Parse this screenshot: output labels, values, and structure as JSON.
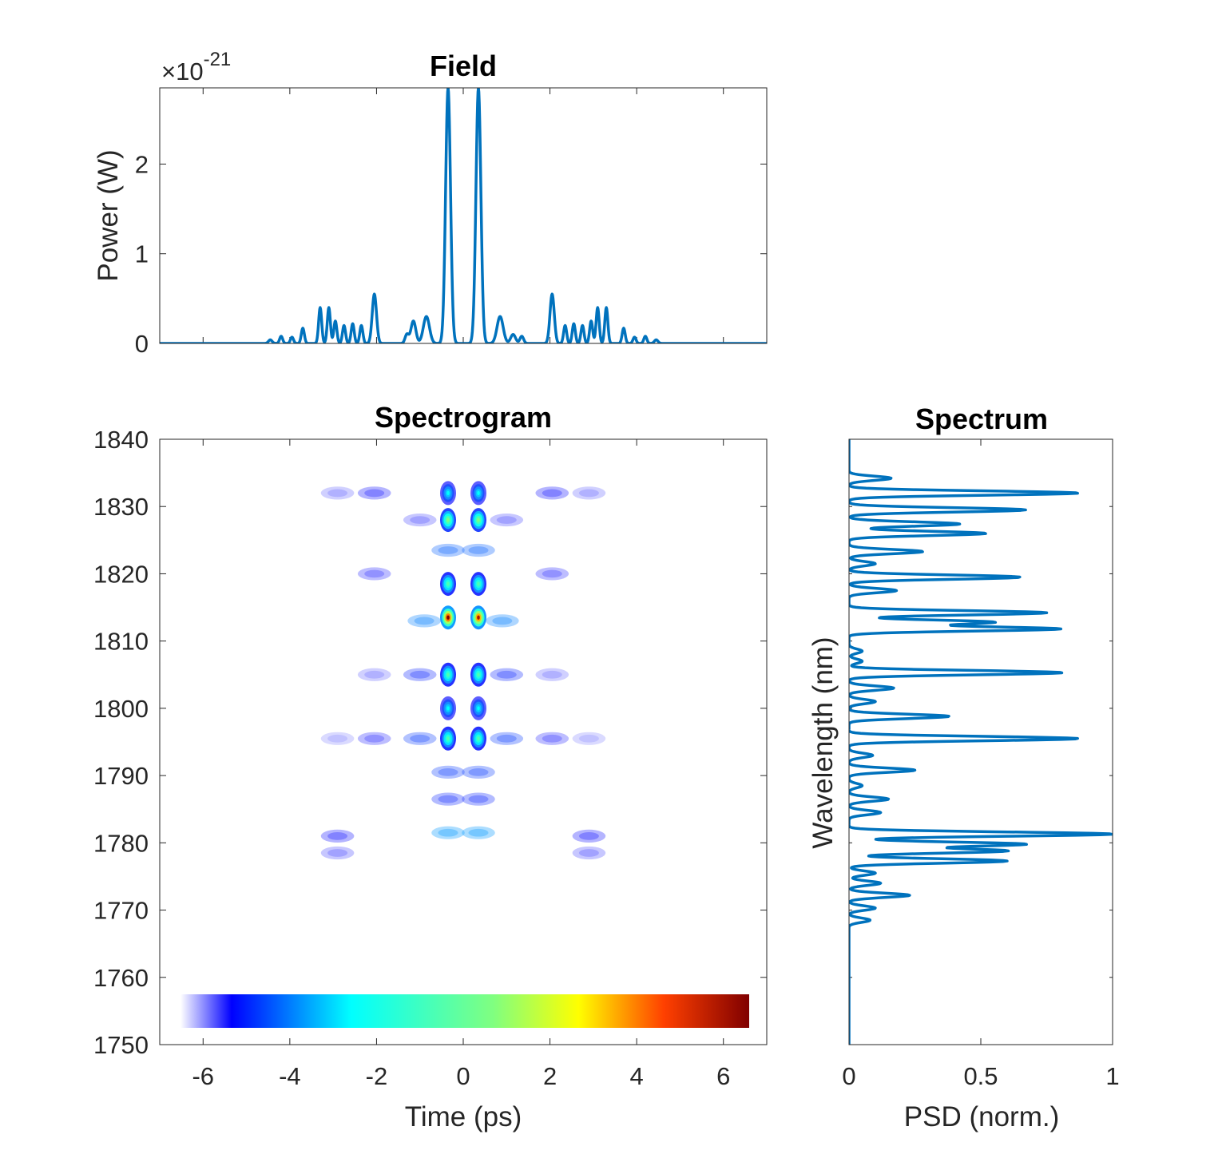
{
  "colors": {
    "line": "#0072BD",
    "axis": "#262626"
  },
  "chart_data": [
    {
      "id": "field",
      "type": "line",
      "title": "Field",
      "xlabel": "",
      "ylabel": "Power (W)",
      "exponent_label": "×10",
      "exponent_power": "-21",
      "xlim": [
        -7,
        7
      ],
      "ylim": [
        0,
        2.85
      ],
      "yticks": [
        0,
        1,
        2
      ],
      "ytick_labels": [
        "0",
        "1",
        "2"
      ],
      "xticks": [
        -6,
        -4,
        -2,
        0,
        2,
        4,
        6
      ],
      "y_scale_factor": "1e-21",
      "peaks": [
        {
          "x": -0.35,
          "y": 2.85,
          "w": 0.08
        },
        {
          "x": 0.35,
          "y": 2.85,
          "w": 0.08
        },
        {
          "x": -0.85,
          "y": 0.3,
          "w": 0.1
        },
        {
          "x": 0.85,
          "y": 0.3,
          "w": 0.1
        },
        {
          "x": -1.15,
          "y": 0.25,
          "w": 0.08
        },
        {
          "x": 1.15,
          "y": 0.1,
          "w": 0.08
        },
        {
          "x": -1.3,
          "y": 0.1,
          "w": 0.06
        },
        {
          "x": 1.35,
          "y": 0.08,
          "w": 0.06
        },
        {
          "x": -2.05,
          "y": 0.55,
          "w": 0.07
        },
        {
          "x": 2.05,
          "y": 0.55,
          "w": 0.07
        },
        {
          "x": -2.35,
          "y": 0.2,
          "w": 0.05
        },
        {
          "x": 2.35,
          "y": 0.2,
          "w": 0.05
        },
        {
          "x": -2.55,
          "y": 0.22,
          "w": 0.05
        },
        {
          "x": 2.55,
          "y": 0.22,
          "w": 0.05
        },
        {
          "x": -2.75,
          "y": 0.2,
          "w": 0.05
        },
        {
          "x": 2.75,
          "y": 0.2,
          "w": 0.05
        },
        {
          "x": -2.95,
          "y": 0.25,
          "w": 0.05
        },
        {
          "x": 2.95,
          "y": 0.25,
          "w": 0.05
        },
        {
          "x": -3.1,
          "y": 0.4,
          "w": 0.05
        },
        {
          "x": 3.1,
          "y": 0.4,
          "w": 0.05
        },
        {
          "x": -3.3,
          "y": 0.4,
          "w": 0.05
        },
        {
          "x": 3.3,
          "y": 0.4,
          "w": 0.05
        },
        {
          "x": -3.7,
          "y": 0.17,
          "w": 0.05
        },
        {
          "x": 3.7,
          "y": 0.17,
          "w": 0.05
        },
        {
          "x": -3.95,
          "y": 0.07,
          "w": 0.05
        },
        {
          "x": 3.95,
          "y": 0.07,
          "w": 0.05
        },
        {
          "x": -4.2,
          "y": 0.08,
          "w": 0.05
        },
        {
          "x": 4.2,
          "y": 0.08,
          "w": 0.05
        },
        {
          "x": -4.45,
          "y": 0.04,
          "w": 0.06
        },
        {
          "x": 4.45,
          "y": 0.04,
          "w": 0.06
        }
      ]
    },
    {
      "id": "spectrogram",
      "type": "heatmap",
      "title": "Spectrogram",
      "xlabel": "Time (ps)",
      "ylabel": "",
      "xlim": [
        -7,
        7
      ],
      "ylim": [
        1750,
        1840
      ],
      "xticks": [
        -6,
        -4,
        -2,
        0,
        2,
        4,
        6
      ],
      "xtick_labels": [
        "-6",
        "-4",
        "-2",
        "0",
        "2",
        "4",
        "6"
      ],
      "yticks": [
        1750,
        1760,
        1770,
        1780,
        1790,
        1800,
        1810,
        1820,
        1830,
        1840
      ],
      "ytick_labels": [
        "1750",
        "1760",
        "1770",
        "1780",
        "1790",
        "1800",
        "1810",
        "1820",
        "1830",
        "1840"
      ],
      "colormap": "jet (white low end)",
      "colorbar": "horizontal, inside bottom of axes, no tick labels",
      "blobs": [
        {
          "t": -0.35,
          "wl": 1813.5,
          "v": 1.0
        },
        {
          "t": 0.35,
          "wl": 1813.5,
          "v": 0.95
        },
        {
          "t": -0.35,
          "wl": 1818.5,
          "v": 0.45
        },
        {
          "t": 0.35,
          "wl": 1818.5,
          "v": 0.45
        },
        {
          "t": -0.35,
          "wl": 1828.0,
          "v": 0.55
        },
        {
          "t": 0.35,
          "wl": 1828.0,
          "v": 0.55
        },
        {
          "t": -0.35,
          "wl": 1832.0,
          "v": 0.3
        },
        {
          "t": 0.35,
          "wl": 1832.0,
          "v": 0.3
        },
        {
          "t": -0.35,
          "wl": 1805.0,
          "v": 0.45
        },
        {
          "t": 0.35,
          "wl": 1805.0,
          "v": 0.45
        },
        {
          "t": -0.35,
          "wl": 1800.0,
          "v": 0.3
        },
        {
          "t": 0.35,
          "wl": 1800.0,
          "v": 0.3
        },
        {
          "t": -0.35,
          "wl": 1795.5,
          "v": 0.45
        },
        {
          "t": 0.35,
          "wl": 1795.5,
          "v": 0.45
        },
        {
          "t": -0.35,
          "wl": 1781.5,
          "v": 0.2
        },
        {
          "t": 0.35,
          "wl": 1781.5,
          "v": 0.2
        },
        {
          "t": -0.35,
          "wl": 1823.5,
          "v": 0.15
        },
        {
          "t": 0.35,
          "wl": 1823.5,
          "v": 0.15
        },
        {
          "t": -0.35,
          "wl": 1790.5,
          "v": 0.12
        },
        {
          "t": 0.35,
          "wl": 1790.5,
          "v": 0.12
        },
        {
          "t": -0.35,
          "wl": 1786.5,
          "v": 0.1
        },
        {
          "t": 0.35,
          "wl": 1786.5,
          "v": 0.1
        },
        {
          "t": -0.9,
          "wl": 1813.0,
          "v": 0.18
        },
        {
          "t": 0.9,
          "wl": 1813.0,
          "v": 0.18
        },
        {
          "t": -1.0,
          "wl": 1795.5,
          "v": 0.12
        },
        {
          "t": 1.0,
          "wl": 1795.5,
          "v": 0.12
        },
        {
          "t": -1.0,
          "wl": 1805.0,
          "v": 0.1
        },
        {
          "t": 1.0,
          "wl": 1805.0,
          "v": 0.1
        },
        {
          "t": -1.0,
          "wl": 1828.0,
          "v": 0.06
        },
        {
          "t": 1.0,
          "wl": 1828.0,
          "v": 0.06
        },
        {
          "t": -2.05,
          "wl": 1832.0,
          "v": 0.08
        },
        {
          "t": 2.05,
          "wl": 1832.0,
          "v": 0.08
        },
        {
          "t": -2.05,
          "wl": 1820.0,
          "v": 0.07
        },
        {
          "t": 2.05,
          "wl": 1820.0,
          "v": 0.07
        },
        {
          "t": -2.05,
          "wl": 1795.5,
          "v": 0.07
        },
        {
          "t": 2.05,
          "wl": 1795.5,
          "v": 0.07
        },
        {
          "t": -2.05,
          "wl": 1805.0,
          "v": 0.05
        },
        {
          "t": 2.05,
          "wl": 1805.0,
          "v": 0.05
        },
        {
          "t": -2.9,
          "wl": 1781.0,
          "v": 0.08
        },
        {
          "t": 2.9,
          "wl": 1781.0,
          "v": 0.08
        },
        {
          "t": -2.9,
          "wl": 1778.5,
          "v": 0.06
        },
        {
          "t": 2.9,
          "wl": 1778.5,
          "v": 0.06
        },
        {
          "t": -2.9,
          "wl": 1832.0,
          "v": 0.05
        },
        {
          "t": 2.9,
          "wl": 1832.0,
          "v": 0.05
        },
        {
          "t": -2.9,
          "wl": 1795.5,
          "v": 0.04
        },
        {
          "t": 2.9,
          "wl": 1795.5,
          "v": 0.04
        }
      ]
    },
    {
      "id": "spectrum",
      "type": "line",
      "title": "Spectrum",
      "xlabel": "PSD (norm.)",
      "ylabel": "Wavelength (nm)",
      "xlim": [
        0,
        1
      ],
      "ylim": [
        1750,
        1840
      ],
      "xticks": [
        0,
        0.5,
        1
      ],
      "xtick_labels": [
        "0",
        "0.5",
        "1"
      ],
      "yticks": [
        1750,
        1760,
        1770,
        1780,
        1790,
        1800,
        1810,
        1820,
        1830,
        1840
      ],
      "peaks": [
        {
          "wl": 1834.2,
          "v": 0.16
        },
        {
          "wl": 1832.0,
          "v": 0.87
        },
        {
          "wl": 1829.5,
          "v": 0.67
        },
        {
          "wl": 1827.4,
          "v": 0.42
        },
        {
          "wl": 1826.0,
          "v": 0.52
        },
        {
          "wl": 1823.3,
          "v": 0.28
        },
        {
          "wl": 1821.5,
          "v": 0.1
        },
        {
          "wl": 1819.5,
          "v": 0.65
        },
        {
          "wl": 1817.5,
          "v": 0.18
        },
        {
          "wl": 1814.2,
          "v": 0.75
        },
        {
          "wl": 1812.8,
          "v": 0.55
        },
        {
          "wl": 1811.8,
          "v": 0.8
        },
        {
          "wl": 1808.5,
          "v": 0.05
        },
        {
          "wl": 1807.0,
          "v": 0.05
        },
        {
          "wl": 1805.3,
          "v": 0.81
        },
        {
          "wl": 1803.0,
          "v": 0.17
        },
        {
          "wl": 1801.0,
          "v": 0.1
        },
        {
          "wl": 1798.8,
          "v": 0.38
        },
        {
          "wl": 1795.5,
          "v": 0.87
        },
        {
          "wl": 1793.0,
          "v": 0.09
        },
        {
          "wl": 1790.8,
          "v": 0.25
        },
        {
          "wl": 1788.5,
          "v": 0.05
        },
        {
          "wl": 1786.5,
          "v": 0.15
        },
        {
          "wl": 1784.5,
          "v": 0.12
        },
        {
          "wl": 1781.3,
          "v": 1.0
        },
        {
          "wl": 1779.8,
          "v": 0.67
        },
        {
          "wl": 1778.8,
          "v": 0.6
        },
        {
          "wl": 1777.3,
          "v": 0.6
        },
        {
          "wl": 1775.5,
          "v": 0.1
        },
        {
          "wl": 1774.0,
          "v": 0.12
        },
        {
          "wl": 1772.2,
          "v": 0.23
        },
        {
          "wl": 1770.3,
          "v": 0.1
        },
        {
          "wl": 1768.5,
          "v": 0.08
        }
      ]
    }
  ]
}
